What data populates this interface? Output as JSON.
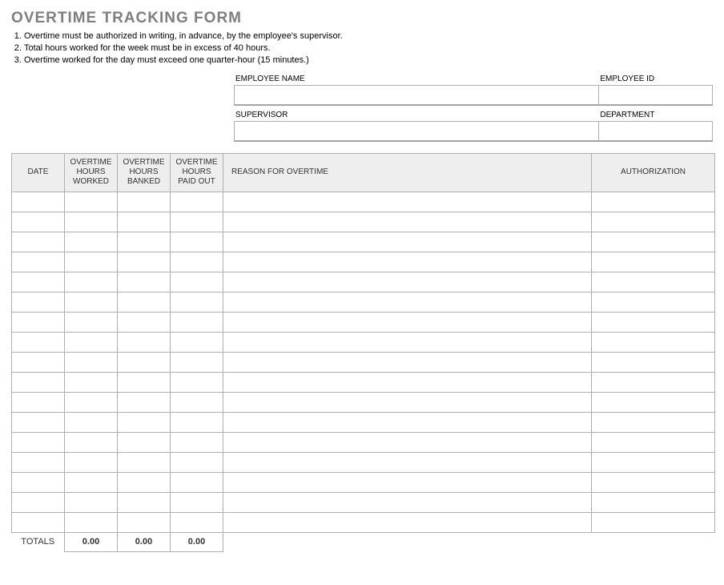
{
  "title": "OVERTIME TRACKING FORM",
  "rules": [
    "Overtime must be authorized in writing, in advance, by the employee's supervisor.",
    "Total hours worked for the week must be in excess of 40 hours.",
    "Overtime worked for the day must exceed one quarter-hour (15 minutes.)"
  ],
  "meta": {
    "employee_name": {
      "label": "EMPLOYEE NAME",
      "value": ""
    },
    "employee_id": {
      "label": "EMPLOYEE ID",
      "value": ""
    },
    "supervisor": {
      "label": "SUPERVISOR",
      "value": ""
    },
    "department": {
      "label": "DEPARTMENT",
      "value": ""
    }
  },
  "table": {
    "columns": [
      {
        "key": "date",
        "label": "DATE"
      },
      {
        "key": "worked",
        "label": "OVERTIME HOURS WORKED"
      },
      {
        "key": "banked",
        "label": "OVERTIME HOURS BANKED"
      },
      {
        "key": "paid",
        "label": "OVERTIME HOURS PAID OUT"
      },
      {
        "key": "reason",
        "label": "REASON FOR OVERTIME"
      },
      {
        "key": "auth",
        "label": "AUTHORIZATION"
      }
    ],
    "row_count": 17,
    "totals": {
      "label": "TOTALS",
      "worked": "0.00",
      "banked": "0.00",
      "paid": "0.00"
    }
  },
  "colors": {
    "title_gray": "#7f7f7f",
    "header_bg": "#eeeeee",
    "border": "#b0b0b0",
    "shadow_border": "#a6a6a6"
  }
}
